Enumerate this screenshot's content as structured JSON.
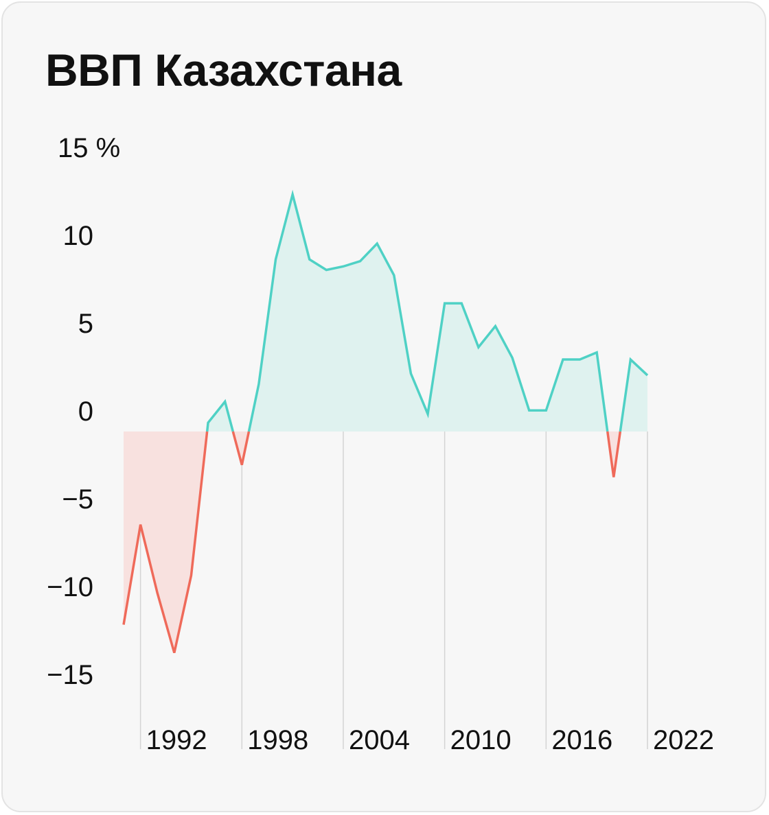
{
  "title": "ВВП Казахстана",
  "colors": {
    "positive_line": "#4fd1c5",
    "positive_fill": "#dff2ef",
    "negative_line": "#ef6a5a",
    "negative_fill": "#f8e1df",
    "gridline": "#d4d4d4",
    "background": "#f7f7f7"
  },
  "chart_data": {
    "type": "area",
    "title": "ВВП Казахстана",
    "xlabel": "",
    "ylabel": "",
    "y_unit": "%",
    "ylim": [
      -15,
      15
    ],
    "y_ticks": [
      15,
      10,
      5,
      0,
      -5,
      -10,
      -15
    ],
    "y_tick_labels": [
      "15 %",
      "10",
      "5",
      "0",
      "−5",
      "−10",
      "−15"
    ],
    "x_ticks": [
      1992,
      1998,
      2004,
      2010,
      2016,
      2022
    ],
    "x_tick_labels": [
      "1992",
      "1998",
      "2004",
      "2010",
      "2016",
      "2022"
    ],
    "xlim": [
      1991,
      2022
    ],
    "series": [
      {
        "x": [
          1991,
          1992,
          1993,
          1994,
          1995,
          1996,
          1997,
          1998,
          1999,
          2000,
          2001,
          2002,
          2003,
          2004,
          2005,
          2006,
          2007,
          2008,
          2009,
          2010,
          2011,
          2012,
          2013,
          2014,
          2015,
          2016,
          2017,
          2018,
          2019,
          2020,
          2021,
          2022
        ],
        "values": [
          -11,
          -5.3,
          -9.2,
          -12.6,
          -8.2,
          0.5,
          1.7,
          -1.9,
          2.7,
          9.8,
          13.5,
          9.8,
          9.2,
          9.4,
          9.7,
          10.7,
          8.9,
          3.3,
          1.0,
          7.3,
          7.3,
          4.8,
          6.0,
          4.2,
          1.2,
          1.2,
          4.1,
          4.1,
          4.5,
          -2.6,
          4.1,
          3.2
        ]
      }
    ],
    "grid": "vertical lines at x tick positions",
    "legend": "none"
  }
}
